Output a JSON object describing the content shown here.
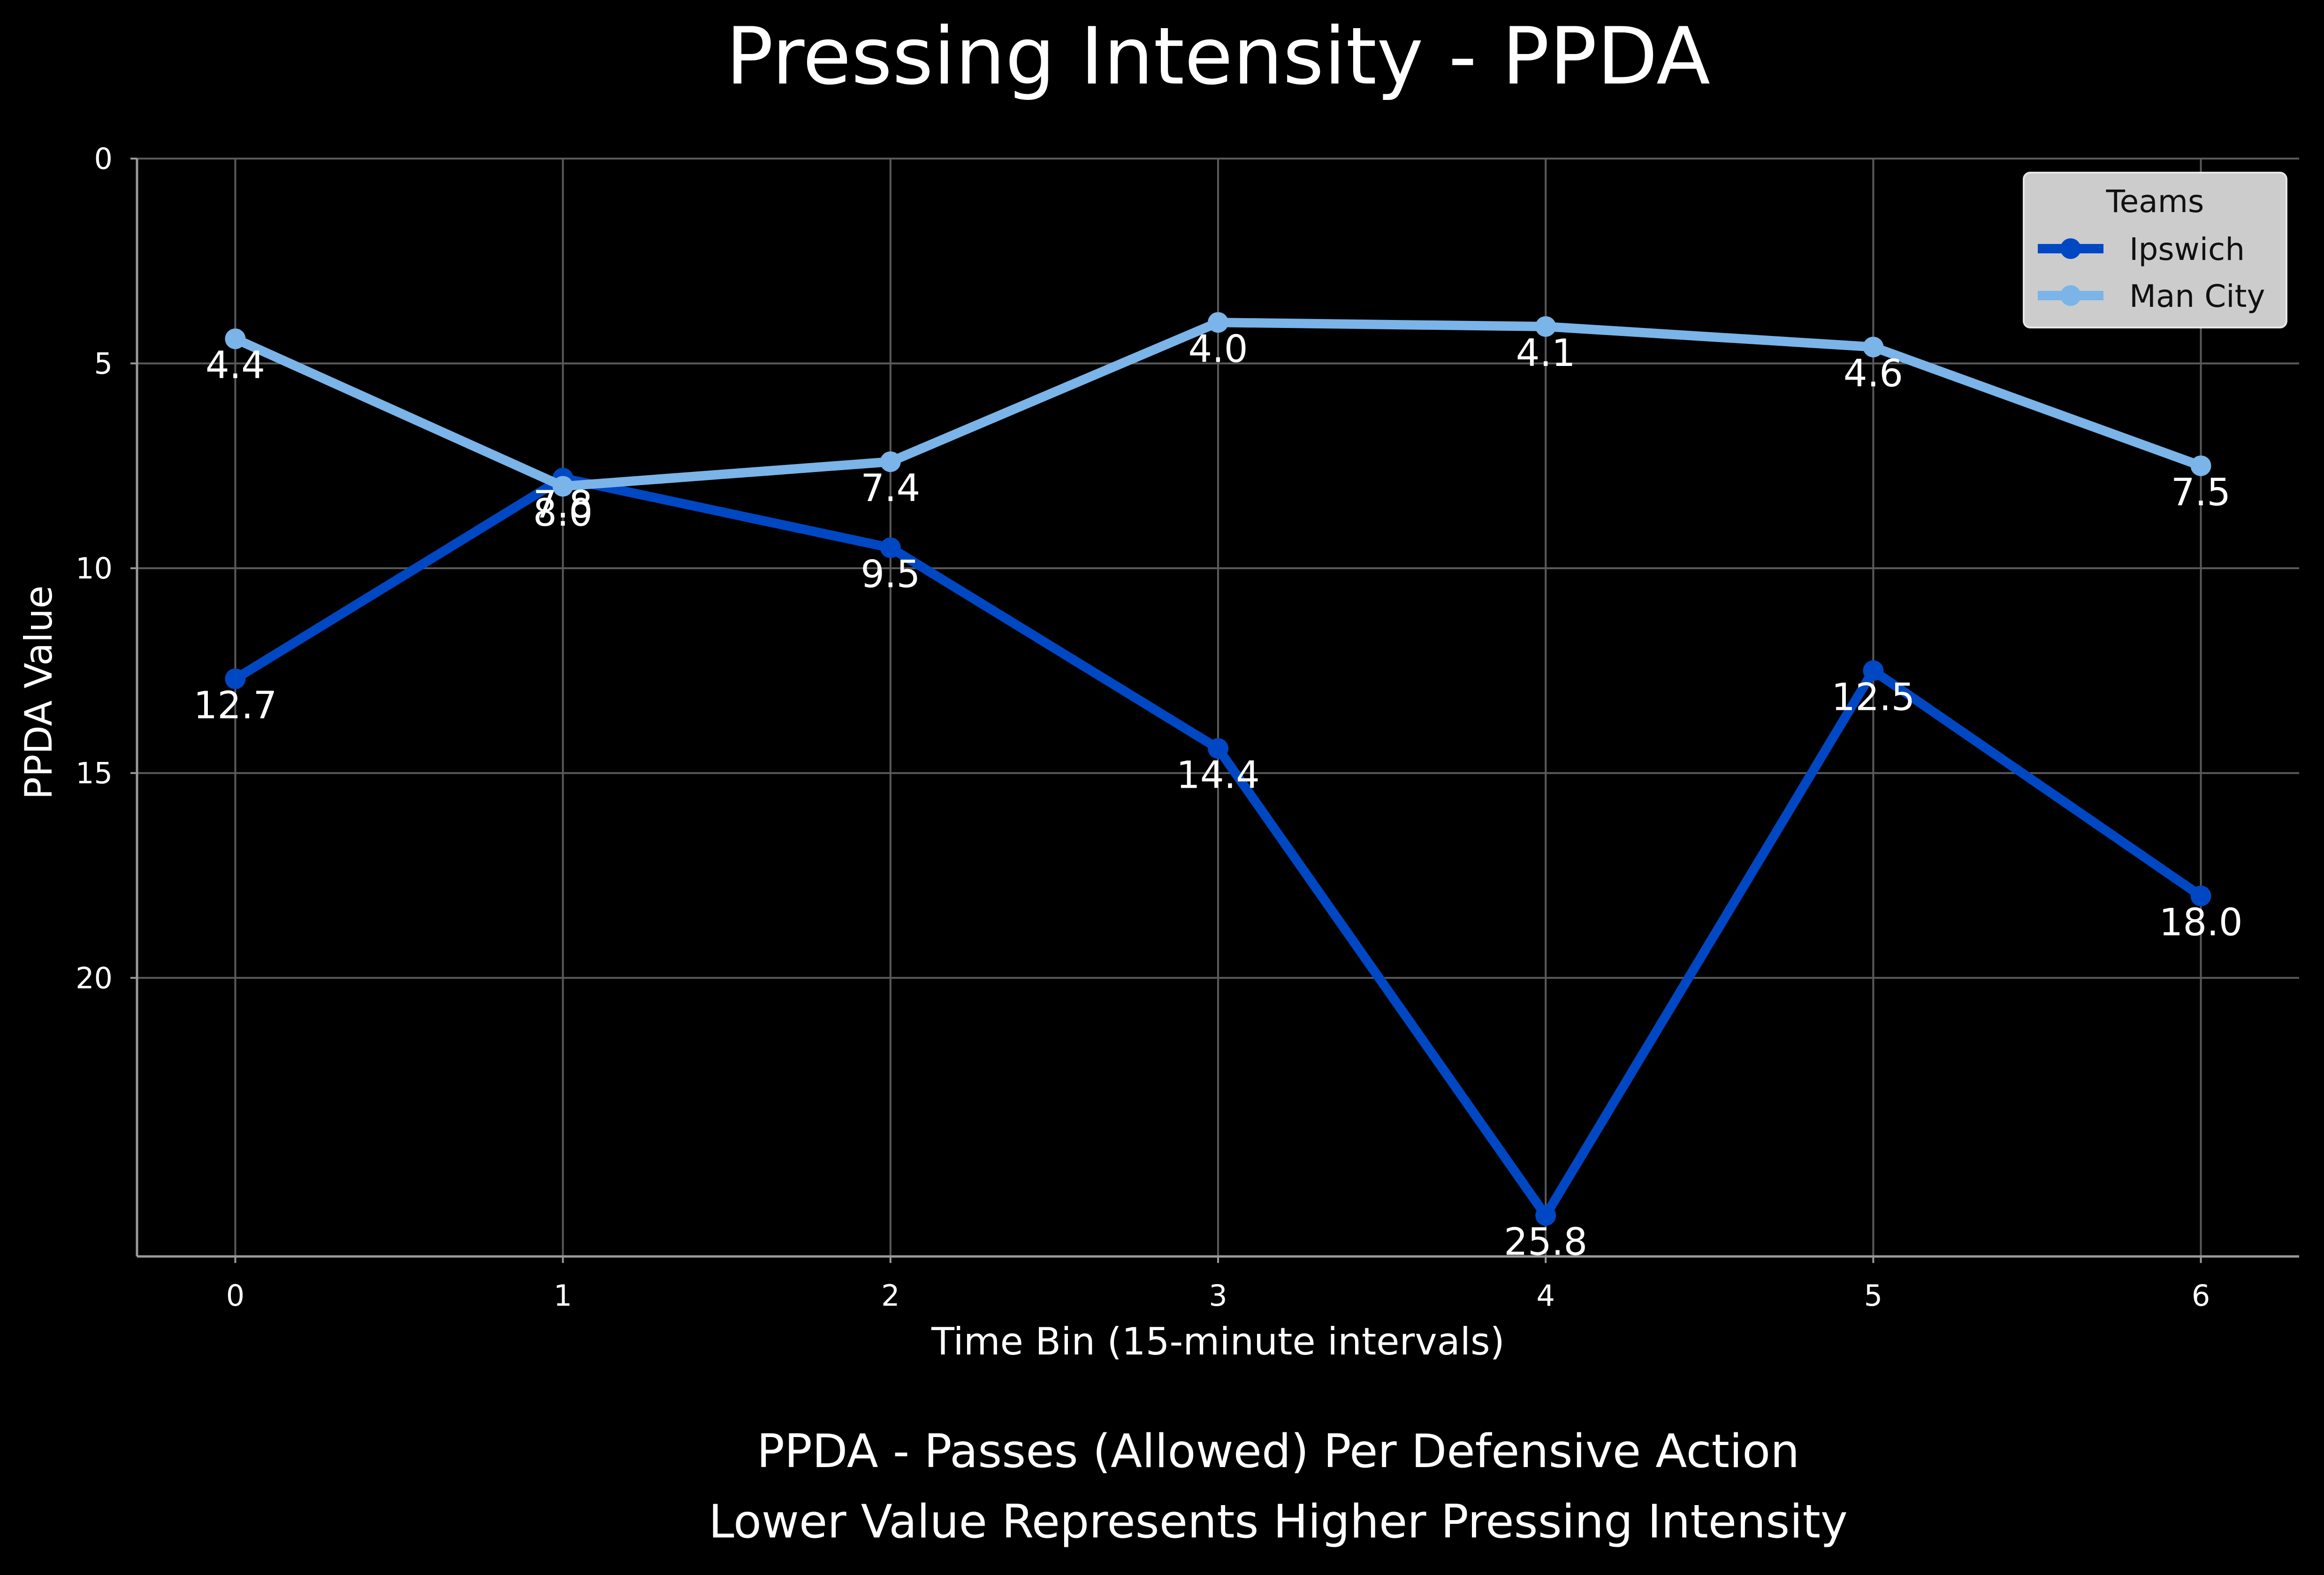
{
  "chart_data": {
    "type": "line",
    "title": "Pressing Intensity - PPDA",
    "xlabel": "Time Bin (15-minute intervals)",
    "ylabel": "PPDA Value",
    "subtitle_lines": [
      "PPDA - Passes (Allowed) Per Defensive Action",
      "Lower Value Represents Higher Pressing Intensity"
    ],
    "x": [
      0,
      1,
      2,
      3,
      4,
      5,
      6
    ],
    "x_ticks": [
      "0",
      "1",
      "2",
      "3",
      "4",
      "5",
      "6"
    ],
    "y_ticks": [
      "0",
      "5",
      "10",
      "15",
      "20"
    ],
    "xlim": [
      -0.3,
      6.3
    ],
    "ylim": [
      0,
      26.8
    ],
    "y_inverted": true,
    "grid": true,
    "legend": {
      "title": "Teams",
      "placement": "top-right"
    },
    "series": [
      {
        "name": "Ipswich",
        "color": "#0047C4",
        "values": [
          12.7,
          7.8,
          9.5,
          14.4,
          25.8,
          12.5,
          18.0
        ],
        "labels": [
          "12.7",
          "7.8",
          "9.5",
          "14.4",
          "25.8",
          "12.5",
          "18.0"
        ]
      },
      {
        "name": "Man City",
        "color": "#7AB4E8",
        "values": [
          4.4,
          8.0,
          7.4,
          4.0,
          4.1,
          4.6,
          7.5
        ],
        "labels": [
          "4.4",
          "8.0",
          "7.4",
          "4.0",
          "4.1",
          "4.6",
          "7.5"
        ]
      }
    ]
  }
}
